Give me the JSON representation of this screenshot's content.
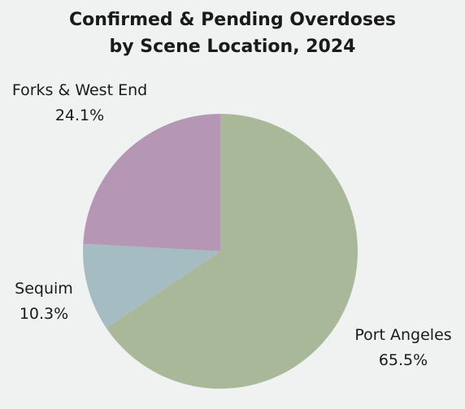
{
  "chart_data": {
    "type": "pie",
    "title_lines": [
      "Confirmed & Pending Overdoses",
      "by Scene Location, 2024"
    ],
    "slices": [
      {
        "label": "Port Angeles",
        "value": 65.5,
        "value_label": "65.5%",
        "color": "#a8b898"
      },
      {
        "label": "Sequim",
        "value": 10.3,
        "value_label": "10.3%",
        "color": "#a5bcc2"
      },
      {
        "label": "Forks & West End",
        "value": 24.1,
        "value_label": "24.1%",
        "color": "#b597b5"
      }
    ],
    "legend": "none",
    "start_angle": "12 o'clock",
    "direction": "clockwise"
  }
}
